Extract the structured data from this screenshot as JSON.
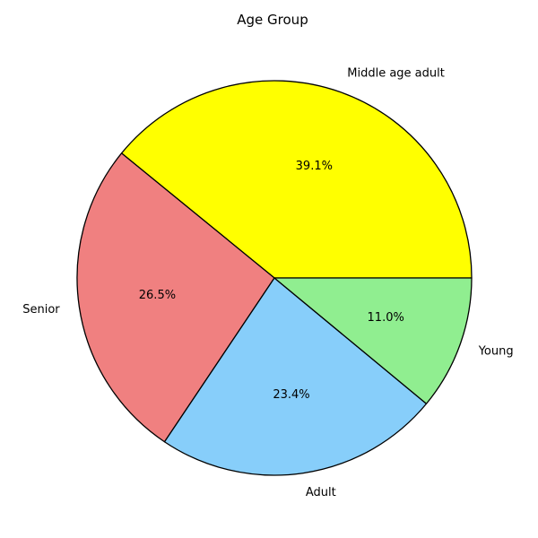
{
  "chart_data": {
    "type": "pie",
    "title": "Age Group",
    "slices": [
      {
        "label": "Middle age adult",
        "value": 39.1,
        "pct_label": "39.1%",
        "color": "#ffff00"
      },
      {
        "label": "Senior",
        "value": 26.5,
        "pct_label": "26.5%",
        "color": "#f08080"
      },
      {
        "label": "Adult",
        "value": 23.4,
        "pct_label": "23.4%",
        "color": "#87cefa"
      },
      {
        "label": "Young",
        "value": 11.0,
        "pct_label": "11.0%",
        "color": "#90ee90"
      }
    ],
    "start_angle_deg": 0,
    "direction": "counterclockwise",
    "edge_color": "#000000"
  }
}
